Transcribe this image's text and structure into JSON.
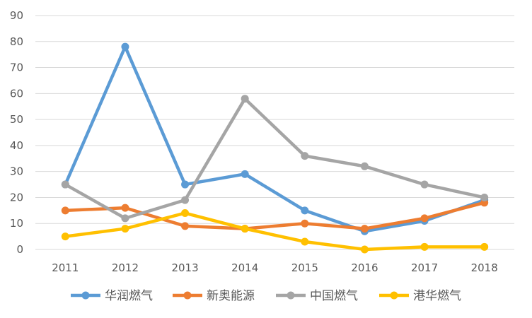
{
  "chart_data": {
    "type": "line",
    "title": "",
    "xlabel": "",
    "ylabel": "",
    "x": [
      "2011",
      "2012",
      "2013",
      "2014",
      "2015",
      "2016",
      "2017",
      "2018"
    ],
    "ylim": [
      0,
      90
    ],
    "yticks": [
      "0",
      "10",
      "20",
      "30",
      "40",
      "50",
      "60",
      "70",
      "80",
      "90"
    ],
    "grid": true,
    "legend_position": "bottom",
    "series": [
      {
        "name": "华润燃气",
        "color": "#5B9BD5",
        "values": [
          25,
          78,
          25,
          29,
          15,
          7,
          11,
          19
        ]
      },
      {
        "name": "新奥能源",
        "color": "#ED7D31",
        "values": [
          15,
          16,
          9,
          8,
          10,
          8,
          12,
          18
        ]
      },
      {
        "name": "中国燃气",
        "color": "#A5A5A5",
        "values": [
          25,
          12,
          19,
          58,
          36,
          32,
          25,
          20
        ]
      },
      {
        "name": "港华燃气",
        "color": "#FFC000",
        "values": [
          5,
          8,
          14,
          8,
          3,
          0,
          1,
          1
        ]
      }
    ]
  }
}
